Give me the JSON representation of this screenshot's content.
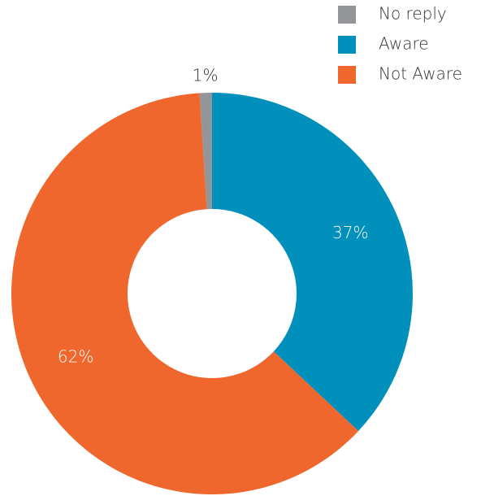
{
  "chart_data": {
    "type": "pie",
    "categories": [
      "No reply",
      "Aware",
      "Not Aware"
    ],
    "values": [
      1,
      37,
      62
    ],
    "value_labels": [
      "1%",
      "37%",
      "62%"
    ],
    "colors": [
      "#939598",
      "#0090bb",
      "#f0672d"
    ],
    "legend": "top-right"
  }
}
